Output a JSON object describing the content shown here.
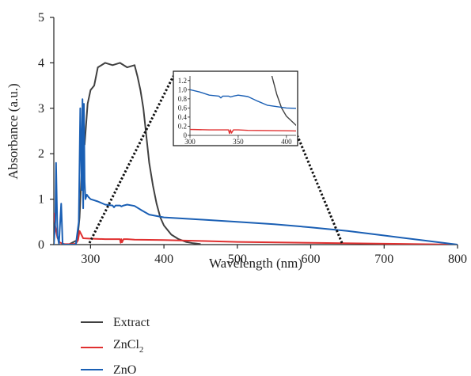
{
  "chart_data": {
    "type": "line",
    "xlabel": "Wavelength (nm)",
    "ylabel": "Absorbance (a.u.)",
    "xlim": [
      250,
      800
    ],
    "ylim": [
      0,
      5
    ],
    "x_ticks": [
      "300",
      "400",
      "500",
      "600",
      "700",
      "800"
    ],
    "y_ticks": [
      "0",
      "1",
      "2",
      "3",
      "4",
      "5"
    ],
    "grid": false,
    "legend_position": "below",
    "series": [
      {
        "name": "Extract",
        "color": "#404040",
        "x": [
          270,
          282,
          285,
          288,
          290,
          292,
          296,
          300,
          305,
          310,
          320,
          330,
          340,
          350,
          360,
          364,
          368,
          372,
          376,
          380,
          385,
          390,
          395,
          400,
          410,
          420,
          430,
          440,
          450
        ],
        "y": [
          0,
          0.1,
          0.6,
          1.6,
          2.6,
          2.2,
          3.1,
          3.4,
          3.5,
          3.9,
          4.0,
          3.95,
          4.0,
          3.9,
          3.95,
          3.7,
          3.4,
          3.0,
          2.4,
          1.8,
          1.3,
          0.9,
          0.6,
          0.42,
          0.22,
          0.12,
          0.06,
          0.03,
          0.01
        ]
      },
      {
        "name": "ZnCl2",
        "color": "#e03030",
        "x": [
          250,
          252,
          255,
          258,
          262,
          265,
          270,
          275,
          280,
          283,
          285,
          290,
          300,
          320,
          340,
          341,
          342,
          343,
          345,
          350,
          360,
          400,
          450,
          500,
          600,
          700,
          800
        ],
        "y": [
          0.7,
          0.4,
          0.15,
          0.05,
          0.02,
          0.01,
          0.01,
          0.01,
          0.02,
          0.1,
          0.3,
          0.14,
          0.13,
          0.12,
          0.12,
          0.04,
          0.12,
          0.05,
          0.12,
          0.12,
          0.11,
          0.1,
          0.08,
          0.06,
          0.04,
          0.02,
          0.0
        ]
      },
      {
        "name": "ZnO",
        "color": "#1a5fb4",
        "x": [
          250,
          252,
          253,
          255,
          257,
          260,
          262,
          265,
          270,
          280,
          284,
          286,
          288,
          289,
          290,
          291,
          292,
          293,
          295,
          297,
          300,
          310,
          320,
          330,
          332,
          334,
          336,
          340,
          342,
          345,
          350,
          360,
          370,
          380,
          400,
          450,
          500,
          550,
          600,
          650,
          700,
          750,
          800
        ],
        "y": [
          0,
          0.5,
          1.8,
          0.2,
          0.02,
          0.9,
          0.02,
          0.0,
          0.0,
          0.0,
          0.5,
          3.0,
          1.2,
          3.2,
          0.8,
          3.1,
          1.4,
          1.0,
          1.1,
          1.05,
          1.0,
          0.95,
          0.88,
          0.86,
          0.82,
          0.86,
          0.86,
          0.86,
          0.84,
          0.86,
          0.88,
          0.85,
          0.75,
          0.66,
          0.6,
          0.55,
          0.5,
          0.45,
          0.38,
          0.3,
          0.2,
          0.1,
          0.0
        ]
      }
    ],
    "inset": {
      "xlim": [
        300,
        410
      ],
      "ylim": [
        0,
        1.3
      ],
      "x_ticks": [
        "300",
        "350",
        "400"
      ],
      "y_ticks": [
        "0",
        "0.2",
        "0.4",
        "0.6",
        "0.8",
        "1.0",
        "1.2"
      ]
    }
  },
  "legend": {
    "items": [
      {
        "key": "Extract",
        "label": "Extract",
        "sub": ""
      },
      {
        "key": "ZnCl2",
        "label": "ZnCl",
        "sub": "2"
      },
      {
        "key": "ZnO",
        "label": "ZnO",
        "sub": ""
      }
    ]
  }
}
